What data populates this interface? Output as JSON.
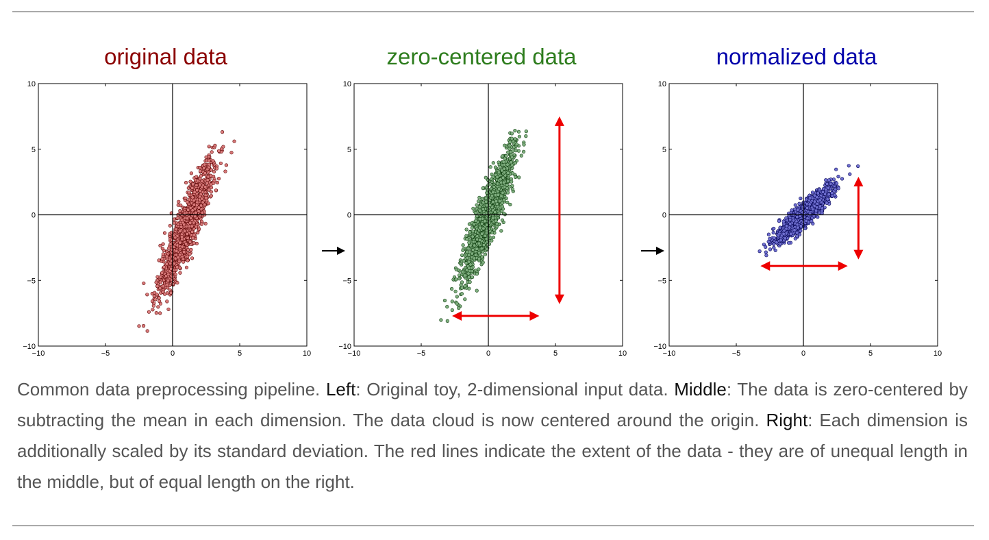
{
  "chart_data": [
    {
      "type": "scatter",
      "title": "original data",
      "title_color": "#8b0000",
      "point_fill": "#d87a7a",
      "point_stroke": "#5a0000",
      "xlim": [
        -10,
        10
      ],
      "ylim": [
        -10,
        10
      ],
      "xticks": [
        "−10",
        "−5",
        "0",
        "5",
        "10"
      ],
      "yticks": [
        "10",
        "5",
        "0",
        "−5",
        "−10"
      ],
      "distribution": {
        "mean": [
          1.0,
          -1.0
        ],
        "std": [
          1.0,
          2.5
        ],
        "correlation": 0.9,
        "n": 1400
      },
      "extent_arrows": false
    },
    {
      "type": "scatter",
      "title": "zero-centered data",
      "title_color": "#2e7d1e",
      "point_fill": "#7fae7f",
      "point_stroke": "#0f3f0f",
      "xlim": [
        -10,
        10
      ],
      "ylim": [
        -10,
        10
      ],
      "xticks": [
        "−10",
        "−5",
        "0",
        "5",
        "10"
      ],
      "yticks": [
        "10",
        "5",
        "0",
        "−5",
        "−10"
      ],
      "distribution": {
        "mean": [
          0.0,
          0.0
        ],
        "std": [
          1.0,
          2.5
        ],
        "correlation": 0.9,
        "n": 1400
      },
      "extent_arrows": true,
      "arrow_color": "#ee0000",
      "vertical_arrow": {
        "x": 5.3,
        "y_from": -6.8,
        "y_to": 7.5
      },
      "horizontal_arrow": {
        "y": -7.7,
        "x_from": -2.7,
        "x_to": 3.8
      }
    },
    {
      "type": "scatter",
      "title": "normalized data",
      "title_color": "#0000aa",
      "point_fill": "#6f6fd0",
      "point_stroke": "#000050",
      "xlim": [
        -10,
        10
      ],
      "ylim": [
        -10,
        10
      ],
      "xticks": [
        "−10",
        "−5",
        "0",
        "5",
        "10"
      ],
      "yticks": [
        "10",
        "5",
        "0",
        "−5",
        "−10"
      ],
      "distribution": {
        "mean": [
          0.0,
          0.0
        ],
        "std": [
          1.0,
          1.0
        ],
        "correlation": 0.9,
        "n": 1400
      },
      "extent_arrows": true,
      "arrow_color": "#ee0000",
      "vertical_arrow": {
        "x": 4.1,
        "y_from": -3.4,
        "y_to": 2.9
      },
      "horizontal_arrow": {
        "y": -3.9,
        "x_from": -3.2,
        "x_to": 3.3
      }
    }
  ],
  "caption": {
    "intro": "Common data preprocessing pipeline. ",
    "left_label": "Left",
    "left_text": ": Original toy, 2-dimensional input data. ",
    "middle_label": "Middle",
    "middle_text": ": The data is zero-centered by subtracting the mean in each dimension. The data cloud is now centered around the origin. ",
    "right_label": "Right",
    "right_text": ": Each dimension is additionally scaled by its standard deviation. The red lines indicate the extent of the data - they are of unequal length in the middle, but of equal length on the right."
  }
}
